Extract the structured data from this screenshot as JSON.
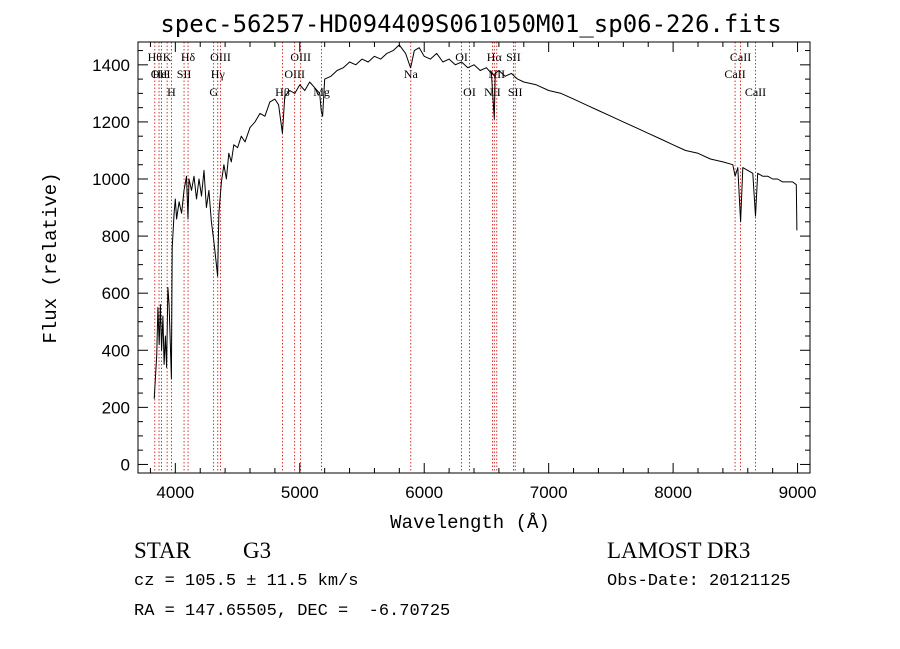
{
  "chart_data": {
    "type": "line",
    "title": "spec-56257-HD094409S061050M01_sp06-226.fits",
    "xlabel": "Wavelength (Å)",
    "ylabel": "Flux (relative)",
    "xlim": [
      3700,
      9100
    ],
    "ylim": [
      -30,
      1480
    ],
    "xticks": [
      4000,
      5000,
      6000,
      7000,
      8000,
      9000
    ],
    "yticks": [
      0,
      200,
      400,
      600,
      800,
      1000,
      1200,
      1400
    ],
    "grid": false,
    "series": [
      {
        "color": "#000000",
        "points": [
          [
            3830,
            230
          ],
          [
            3850,
            380
          ],
          [
            3860,
            550
          ],
          [
            3870,
            420
          ],
          [
            3880,
            560
          ],
          [
            3890,
            400
          ],
          [
            3900,
            520
          ],
          [
            3910,
            350
          ],
          [
            3920,
            450
          ],
          [
            3930,
            340
          ],
          [
            3940,
            620
          ],
          [
            3950,
            560
          ],
          [
            3968,
            300
          ],
          [
            3975,
            760
          ],
          [
            3990,
            880
          ],
          [
            4000,
            930
          ],
          [
            4010,
            860
          ],
          [
            4030,
            920
          ],
          [
            4050,
            880
          ],
          [
            4070,
            960
          ],
          [
            4090,
            1010
          ],
          [
            4102,
            860
          ],
          [
            4110,
            1000
          ],
          [
            4130,
            960
          ],
          [
            4150,
            1010
          ],
          [
            4170,
            930
          ],
          [
            4190,
            1000
          ],
          [
            4210,
            940
          ],
          [
            4230,
            1030
          ],
          [
            4250,
            900
          ],
          [
            4270,
            960
          ],
          [
            4290,
            850
          ],
          [
            4310,
            780
          ],
          [
            4330,
            700
          ],
          [
            4340,
            660
          ],
          [
            4350,
            880
          ],
          [
            4370,
            990
          ],
          [
            4390,
            1050
          ],
          [
            4410,
            1000
          ],
          [
            4430,
            1090
          ],
          [
            4450,
            1060
          ],
          [
            4470,
            1120
          ],
          [
            4500,
            1110
          ],
          [
            4530,
            1150
          ],
          [
            4560,
            1130
          ],
          [
            4600,
            1180
          ],
          [
            4640,
            1200
          ],
          [
            4680,
            1230
          ],
          [
            4720,
            1220
          ],
          [
            4760,
            1270
          ],
          [
            4800,
            1280
          ],
          [
            4830,
            1260
          ],
          [
            4860,
            1160
          ],
          [
            4880,
            1290
          ],
          [
            4920,
            1310
          ],
          [
            4960,
            1300
          ],
          [
            5000,
            1330
          ],
          [
            5040,
            1310
          ],
          [
            5080,
            1340
          ],
          [
            5120,
            1320
          ],
          [
            5160,
            1300
          ],
          [
            5172,
            1240
          ],
          [
            5183,
            1220
          ],
          [
            5200,
            1350
          ],
          [
            5250,
            1360
          ],
          [
            5300,
            1380
          ],
          [
            5350,
            1390
          ],
          [
            5400,
            1410
          ],
          [
            5450,
            1400
          ],
          [
            5500,
            1420
          ],
          [
            5550,
            1410
          ],
          [
            5600,
            1430
          ],
          [
            5650,
            1420
          ],
          [
            5700,
            1440
          ],
          [
            5750,
            1450
          ],
          [
            5800,
            1470
          ],
          [
            5850,
            1440
          ],
          [
            5890,
            1390
          ],
          [
            5896,
            1400
          ],
          [
            5920,
            1450
          ],
          [
            5960,
            1460
          ],
          [
            6000,
            1430
          ],
          [
            6050,
            1420
          ],
          [
            6100,
            1440
          ],
          [
            6150,
            1410
          ],
          [
            6200,
            1420
          ],
          [
            6250,
            1400
          ],
          [
            6300,
            1410
          ],
          [
            6350,
            1390
          ],
          [
            6400,
            1400
          ],
          [
            6450,
            1380
          ],
          [
            6500,
            1390
          ],
          [
            6540,
            1370
          ],
          [
            6563,
            1210
          ],
          [
            6570,
            1370
          ],
          [
            6600,
            1380
          ],
          [
            6650,
            1360
          ],
          [
            6700,
            1370
          ],
          [
            6750,
            1350
          ],
          [
            6800,
            1340
          ],
          [
            6900,
            1330
          ],
          [
            7000,
            1310
          ],
          [
            7100,
            1300
          ],
          [
            7200,
            1280
          ],
          [
            7300,
            1260
          ],
          [
            7400,
            1240
          ],
          [
            7500,
            1220
          ],
          [
            7600,
            1200
          ],
          [
            7700,
            1180
          ],
          [
            7800,
            1160
          ],
          [
            7900,
            1140
          ],
          [
            8000,
            1120
          ],
          [
            8100,
            1100
          ],
          [
            8200,
            1090
          ],
          [
            8300,
            1070
          ],
          [
            8400,
            1060
          ],
          [
            8480,
            1050
          ],
          [
            8498,
            1010
          ],
          [
            8520,
            1040
          ],
          [
            8542,
            850
          ],
          [
            8560,
            1040
          ],
          [
            8600,
            1030
          ],
          [
            8640,
            1020
          ],
          [
            8662,
            870
          ],
          [
            8680,
            1020
          ],
          [
            8720,
            1010
          ],
          [
            8760,
            1010
          ],
          [
            8800,
            1000
          ],
          [
            8840,
            1000
          ],
          [
            8880,
            990
          ],
          [
            8920,
            990
          ],
          [
            8960,
            990
          ],
          [
            8990,
            980
          ],
          [
            8995,
            820
          ]
        ]
      }
    ],
    "line_markers": [
      {
        "wavelength": 3835,
        "label": "Hθ",
        "row": 0
      },
      {
        "wavelength": 3869,
        "label": "OII",
        "row": 1
      },
      {
        "wavelength": 3889,
        "label": "HeI",
        "row": 1
      },
      {
        "wavelength": 3934,
        "label": "K",
        "row": 0
      },
      {
        "wavelength": 3969,
        "label": "H",
        "row": 2
      },
      {
        "wavelength": 4070,
        "label": "SII",
        "row": 1
      },
      {
        "wavelength": 4102,
        "label": "Hδ",
        "row": 0
      },
      {
        "wavelength": 4308,
        "label": "G",
        "row": 2
      },
      {
        "wavelength": 4341,
        "label": "Hγ",
        "row": 1
      },
      {
        "wavelength": 4363,
        "label": "OIII",
        "row": 0
      },
      {
        "wavelength": 4861,
        "label": "Hβ",
        "row": 2
      },
      {
        "wavelength": 4959,
        "label": "OIII",
        "row": 1
      },
      {
        "wavelength": 5007,
        "label": "OIII",
        "row": 0
      },
      {
        "wavelength": 5175,
        "label": "Mg",
        "row": 2
      },
      {
        "wavelength": 5892,
        "label": "Na",
        "row": 1
      },
      {
        "wavelength": 6300,
        "label": "OI",
        "row": 0
      },
      {
        "wavelength": 6364,
        "label": "OI",
        "row": 2
      },
      {
        "wavelength": 6548,
        "label": "NII",
        "row": 2
      },
      {
        "wavelength": 6563,
        "label": "Hα",
        "row": 0
      },
      {
        "wavelength": 6583,
        "label": "NII",
        "row": 1
      },
      {
        "wavelength": 6717,
        "label": "SII",
        "row": 0
      },
      {
        "wavelength": 6731,
        "label": "SII",
        "row": 2
      },
      {
        "wavelength": 8498,
        "label": "CaII",
        "row": 1
      },
      {
        "wavelength": 8542,
        "label": "CaII",
        "row": 0
      },
      {
        "wavelength": 8662,
        "label": "CaII",
        "row": 2
      }
    ]
  },
  "info": {
    "class": "STAR",
    "subclass": "G3",
    "survey": "LAMOST DR3",
    "cz": "cz = 105.5 ± 11.5 km/s",
    "obs_date": "Obs-Date: 20121125",
    "radec": "RA = 147.65505, DEC =  -6.70725"
  },
  "colors": {
    "line_marker": "#cc0000",
    "spectrum": "#000000",
    "axis": "#000000"
  }
}
